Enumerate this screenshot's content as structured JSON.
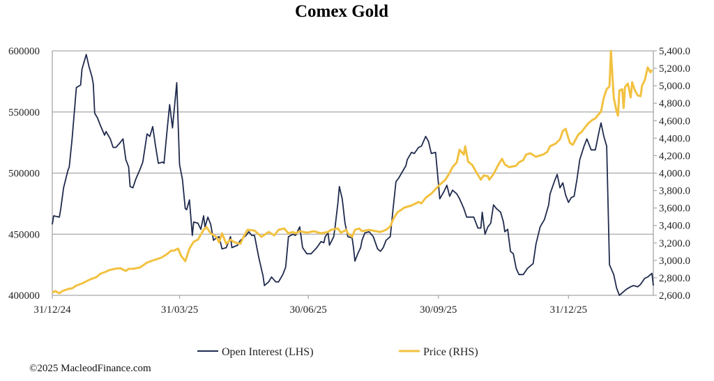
{
  "chart_data": {
    "type": "line",
    "title": "Comex Gold",
    "x_unit": "days since 31/12/24",
    "x_tick_labels": [
      {
        "day": 0,
        "label": "31/12/24"
      },
      {
        "day": 90,
        "label": "31/03/25"
      },
      {
        "day": 181,
        "label": "30/06/25"
      },
      {
        "day": 273,
        "label": "30/09/25"
      },
      {
        "day": 365,
        "label": "31/12/25"
      }
    ],
    "xlim": [
      0,
      425
    ],
    "left_axis": {
      "ylim": [
        400000,
        600000
      ],
      "ticks": [
        "400000",
        "450000",
        "500000",
        "550000",
        "600000"
      ],
      "tick_values": [
        400000,
        450000,
        500000,
        550000,
        600000
      ]
    },
    "right_axis": {
      "ylim": [
        2600,
        5400
      ],
      "ticks": [
        "2,600.0",
        "2,800.0",
        "3,000.0",
        "3,200.0",
        "3,400.0",
        "3,600.0",
        "3,800.0",
        "4,000.0",
        "4,200.0",
        "4,400.0",
        "4,600.0",
        "4,800.0",
        "5,000.0",
        "5,200.0",
        "5,400.0"
      ],
      "tick_values": [
        2600,
        2800,
        3000,
        3200,
        3400,
        3600,
        3800,
        4000,
        4200,
        4400,
        4600,
        4800,
        5000,
        5200,
        5400
      ]
    },
    "grid": "horizontal",
    "legend_position": "bottom",
    "series": [
      {
        "name": "Open Interest (LHS)",
        "axis": "left",
        "color": "#1f2a4d",
        "x": [
          0,
          1,
          5,
          6,
          8,
          11,
          12,
          14,
          16,
          17,
          20,
          21,
          24,
          26,
          28,
          29,
          30,
          32,
          34,
          37,
          38,
          41,
          43,
          45,
          48,
          50,
          52,
          54,
          55,
          57,
          59,
          62,
          64,
          67,
          69,
          71,
          73,
          75,
          78,
          79,
          81,
          83,
          85,
          88,
          90,
          92,
          94,
          95,
          97,
          99,
          100,
          103,
          105,
          107,
          108,
          110,
          112,
          114,
          116,
          118,
          120,
          123,
          126,
          127,
          131,
          133,
          137,
          139,
          141,
          143,
          146,
          149,
          150,
          153,
          155,
          158,
          160,
          163,
          165,
          167,
          170,
          172,
          175,
          177,
          180,
          183,
          187,
          190,
          192,
          193,
          195,
          196,
          199,
          200,
          202,
          203,
          205,
          207,
          209,
          212,
          213,
          214,
          216,
          218,
          219,
          221,
          224,
          227,
          230,
          232,
          234,
          236,
          239,
          241,
          243,
          245,
          248,
          250,
          251,
          254,
          256,
          259,
          261,
          264,
          266,
          268,
          271,
          273,
          274,
          277,
          279,
          281,
          283,
          286,
          288,
          291,
          293,
          298,
          301,
          303,
          304,
          306,
          308,
          310,
          312,
          314,
          317,
          319,
          320,
          322,
          324,
          326,
          328,
          330,
          333,
          336,
          340,
          342,
          345,
          348,
          351,
          352,
          355,
          357,
          359,
          361,
          363,
          365,
          367,
          369,
          371,
          373,
          376,
          378,
          381,
          384,
          387,
          388,
          390,
          392,
          394,
          397,
          399,
          401,
          404,
          406,
          409,
          411,
          414,
          416,
          419,
          421,
          424,
          425
        ],
        "values": [
          458000,
          465000,
          464000,
          471000,
          488000,
          502000,
          505000,
          528000,
          556000,
          570000,
          572000,
          585000,
          597000,
          587000,
          579000,
          573000,
          549000,
          545000,
          539000,
          531000,
          534000,
          528000,
          521000,
          521000,
          525000,
          528000,
          511000,
          505000,
          489000,
          488000,
          495000,
          503000,
          509000,
          532000,
          530000,
          538000,
          522000,
          508000,
          509000,
          508000,
          533000,
          556000,
          537000,
          574000,
          507000,
          495000,
          471000,
          470000,
          478000,
          449000,
          460000,
          459000,
          454000,
          465000,
          456000,
          464000,
          458000,
          445000,
          447000,
          448000,
          438000,
          439000,
          448000,
          439000,
          441000,
          445000,
          449000,
          452000,
          449000,
          449000,
          431000,
          416000,
          408000,
          411000,
          415000,
          411000,
          411000,
          417000,
          423000,
          448000,
          450000,
          449000,
          456000,
          439000,
          434000,
          434000,
          439000,
          444000,
          443000,
          448000,
          451000,
          441000,
          448000,
          456000,
          476000,
          489000,
          479000,
          459000,
          448000,
          447000,
          439000,
          428000,
          434000,
          439000,
          445000,
          451000,
          452000,
          448000,
          438000,
          436000,
          439000,
          445000,
          448000,
          471000,
          493000,
          496000,
          502000,
          506000,
          511000,
          517000,
          516000,
          521000,
          522000,
          530000,
          526000,
          516000,
          517000,
          492000,
          479000,
          485000,
          490000,
          481000,
          486000,
          483000,
          479000,
          471000,
          464000,
          464000,
          455000,
          455000,
          468000,
          450000,
          456000,
          459000,
          474000,
          471000,
          468000,
          460000,
          452000,
          454000,
          436000,
          434000,
          422000,
          417000,
          417000,
          422000,
          426000,
          442000,
          456000,
          462000,
          474000,
          483000,
          493000,
          499000,
          488000,
          492000,
          482000,
          476000,
          480000,
          481000,
          495000,
          511000,
          522000,
          528000,
          519000,
          519000,
          536000,
          541000,
          530000,
          522000,
          425000,
          417000,
          406000,
          400000,
          403000,
          405000,
          407000,
          408000,
          407000,
          409000,
          414000,
          415000,
          418000,
          408000
        ]
      },
      {
        "name": "Price (RHS)",
        "axis": "right",
        "color": "#f2c140",
        "x": [
          0,
          2,
          5,
          7,
          11,
          14,
          17,
          21,
          24,
          27,
          31,
          34,
          38,
          40,
          44,
          48,
          52,
          54,
          57,
          62,
          67,
          71,
          77,
          81,
          84,
          86,
          89,
          91,
          94,
          97,
          100,
          103,
          107,
          109,
          112,
          116,
          118,
          120,
          123,
          126,
          129,
          133,
          135,
          138,
          143,
          148,
          153,
          157,
          160,
          164,
          167,
          170,
          172,
          175,
          180,
          185,
          190,
          195,
          197,
          202,
          204,
          208,
          209,
          212,
          214,
          217,
          219,
          224,
          229,
          232,
          236,
          239,
          241,
          244,
          249,
          254,
          259,
          261,
          264,
          268,
          273,
          278,
          281,
          283,
          286,
          288,
          291,
          292,
          294,
          297,
          300,
          303,
          305,
          308,
          309,
          312,
          315,
          318,
          320,
          323,
          328,
          330,
          333,
          335,
          338,
          342,
          345,
          347,
          350,
          352,
          356,
          359,
          361,
          363,
          366,
          368,
          372,
          374,
          377,
          379,
          382,
          384,
          386,
          388,
          390,
          392,
          394,
          395,
          397,
          399,
          400,
          401,
          403,
          404,
          405,
          407,
          409,
          410,
          412,
          414,
          416,
          417,
          419,
          421,
          423,
          424
        ],
        "values": [
          2632,
          2648,
          2624,
          2648,
          2672,
          2680,
          2712,
          2736,
          2760,
          2784,
          2807,
          2847,
          2871,
          2887,
          2903,
          2911,
          2879,
          2903,
          2903,
          2919,
          2975,
          2999,
          3031,
          3071,
          3111,
          3111,
          3135,
          3055,
          2991,
          3135,
          3214,
          3238,
          3350,
          3382,
          3310,
          3270,
          3206,
          3310,
          3190,
          3238,
          3206,
          3190,
          3262,
          3350,
          3342,
          3270,
          3326,
          3286,
          3350,
          3366,
          3310,
          3326,
          3310,
          3334,
          3318,
          3334,
          3310,
          3326,
          3350,
          3366,
          3318,
          3350,
          3310,
          3270,
          3350,
          3366,
          3334,
          3350,
          3334,
          3326,
          3350,
          3390,
          3470,
          3549,
          3605,
          3629,
          3669,
          3653,
          3717,
          3765,
          3852,
          3924,
          4004,
          4068,
          4124,
          4267,
          4211,
          4307,
          4132,
          4092,
          4004,
          3924,
          3972,
          3964,
          3924,
          3988,
          4084,
          4164,
          4100,
          4068,
          4084,
          4124,
          4148,
          4211,
          4227,
          4187,
          4203,
          4211,
          4243,
          4307,
          4339,
          4387,
          4483,
          4507,
          4347,
          4323,
          4443,
          4467,
          4530,
          4570,
          4610,
          4626,
          4666,
          4706,
          4866,
          4961,
          4993,
          5400,
          4866,
          4706,
          4658,
          4945,
          4961,
          4746,
          4985,
          5025,
          4866,
          5041,
          4945,
          4889,
          4881,
          5001,
          5065,
          5209,
          5153,
          5185
        ]
      }
    ]
  },
  "footer": {
    "copyright": "©2025 MacleodFinance.com"
  }
}
